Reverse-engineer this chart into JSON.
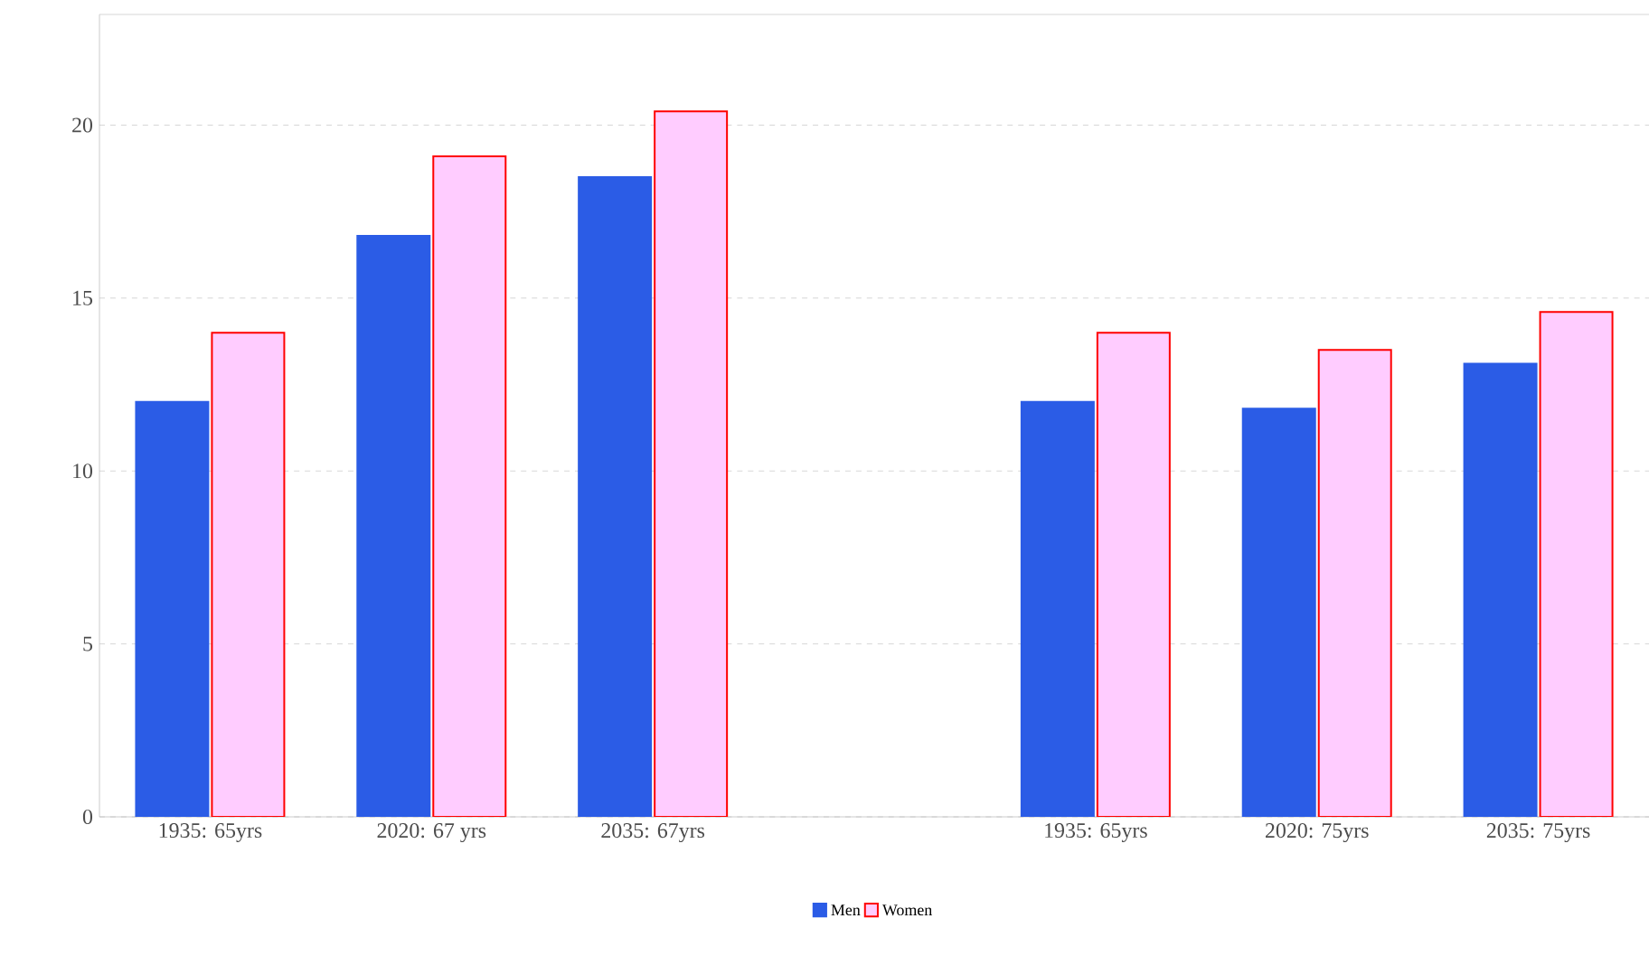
{
  "chart_data": {
    "type": "bar",
    "categories": [
      "1935: 65yrs",
      "2020: 67 yrs",
      "2035: 67yrs",
      null,
      "1935: 65yrs",
      "2020: 75yrs",
      "2035: 75yrs"
    ],
    "series": [
      {
        "name": "Men",
        "color": "#2b5ce6",
        "values": [
          12.0,
          16.8,
          18.5,
          null,
          12.0,
          11.8,
          13.1
        ]
      },
      {
        "name": "Women",
        "color": "#ffccff",
        "values": [
          14.0,
          19.1,
          20.4,
          null,
          14.0,
          13.5,
          14.6
        ]
      }
    ],
    "ylim": [
      0,
      23.2
    ],
    "yticks": [
      0,
      5,
      10,
      15,
      20
    ],
    "grid": "y",
    "legend": "bottom"
  }
}
